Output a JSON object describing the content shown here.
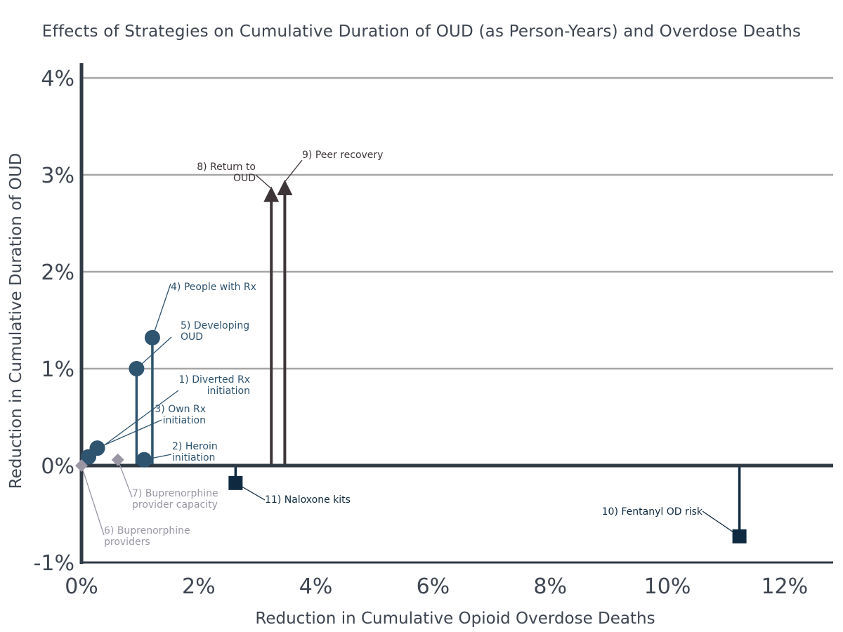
{
  "chart_data": {
    "type": "scatter",
    "title": "Effects of Strategies on Cumulative Duration of OUD (as Person-Years) and Overdose Deaths",
    "xlabel": "Reduction in Cumulative Opioid Overdose Deaths",
    "ylabel": "Reduction in Cumulative Duration of OUD",
    "xlim": [
      0,
      13
    ],
    "ylim": [
      -1,
      4
    ],
    "x_ticks": [
      {
        "value": 0,
        "label": "0%"
      },
      {
        "value": 2,
        "label": "2%"
      },
      {
        "value": 4,
        "label": "4%"
      },
      {
        "value": 6,
        "label": "6%"
      },
      {
        "value": 8,
        "label": "8%"
      },
      {
        "value": 10,
        "label": "10%"
      },
      {
        "value": 12,
        "label": "12%"
      }
    ],
    "y_ticks": [
      {
        "value": -1,
        "label": "-1%"
      },
      {
        "value": 0,
        "label": "0%"
      },
      {
        "value": 1,
        "label": "1%"
      },
      {
        "value": 2,
        "label": "2%"
      },
      {
        "value": 3,
        "label": "3%"
      },
      {
        "value": 4,
        "label": "4%"
      }
    ],
    "grid": true,
    "colors": {
      "circle": "#2e5470",
      "triangle": "#3e3538",
      "square": "#0f2a40",
      "diamond": "#9a96a4",
      "axis": "#2f3a45",
      "grid": "#a6a6a6"
    },
    "points": [
      {
        "label": "1) Diverted Rx initiation",
        "x": 0.12,
        "y": 0.09,
        "marker": "circle",
        "stem": false
      },
      {
        "label": "2) Heroin initiation",
        "x": 1.07,
        "y": 0.06,
        "marker": "circle",
        "stem": false
      },
      {
        "label": "3) Own Rx initiation",
        "x": 0.27,
        "y": 0.18,
        "marker": "circle",
        "stem": false
      },
      {
        "label": "4) People with Rx",
        "x": 1.21,
        "y": 1.32,
        "marker": "circle",
        "stem": true
      },
      {
        "label": "5) Developing OUD",
        "x": 0.94,
        "y": 1.0,
        "marker": "circle",
        "stem": true
      },
      {
        "label": "6) Buprenorphine providers",
        "x": 0.0,
        "y": 0.0,
        "marker": "diamond",
        "stem": false
      },
      {
        "label": "7) Buprenorphine provider capacity",
        "x": 0.62,
        "y": 0.06,
        "marker": "diamond",
        "stem": false
      },
      {
        "label": "8) Return to OUD",
        "x": 3.24,
        "y": 2.8,
        "marker": "triangle",
        "stem": true
      },
      {
        "label": "9) Peer recovery",
        "x": 3.47,
        "y": 2.87,
        "marker": "triangle",
        "stem": true
      },
      {
        "label": "10) Fentanyl OD risk",
        "x": 11.23,
        "y": -0.73,
        "marker": "square",
        "stem": true
      },
      {
        "label": "11) Naloxone kits",
        "x": 2.63,
        "y": -0.18,
        "marker": "square",
        "stem": true
      }
    ],
    "annotations": [
      {
        "lines": [
          "1) Diverted Rx",
          "initiation"
        ],
        "anchor": "end",
        "point": 0
      },
      {
        "lines": [
          "2) Heroin",
          "initiation"
        ],
        "anchor": "start",
        "point": 1
      },
      {
        "lines": [
          "3) Own Rx",
          "initiation"
        ],
        "anchor": "end",
        "point": 2
      },
      {
        "lines": [
          "4) People with Rx"
        ],
        "anchor": "start",
        "point": 3
      },
      {
        "lines": [
          "5) Developing",
          "OUD"
        ],
        "anchor": "start",
        "point": 4
      },
      {
        "lines": [
          "6) Buprenorphine",
          "providers"
        ],
        "anchor": "start",
        "point": 5
      },
      {
        "lines": [
          "7) Buprenorphine",
          "provider capacity"
        ],
        "anchor": "start",
        "point": 6
      },
      {
        "lines": [
          "8) Return to",
          "OUD"
        ],
        "anchor": "end",
        "point": 7
      },
      {
        "lines": [
          "9) Peer recovery"
        ],
        "anchor": "start",
        "point": 8
      },
      {
        "lines": [
          "10) Fentanyl OD risk"
        ],
        "anchor": "end",
        "point": 9
      },
      {
        "lines": [
          "11) Naloxone kits"
        ],
        "anchor": "start",
        "point": 10
      }
    ]
  }
}
